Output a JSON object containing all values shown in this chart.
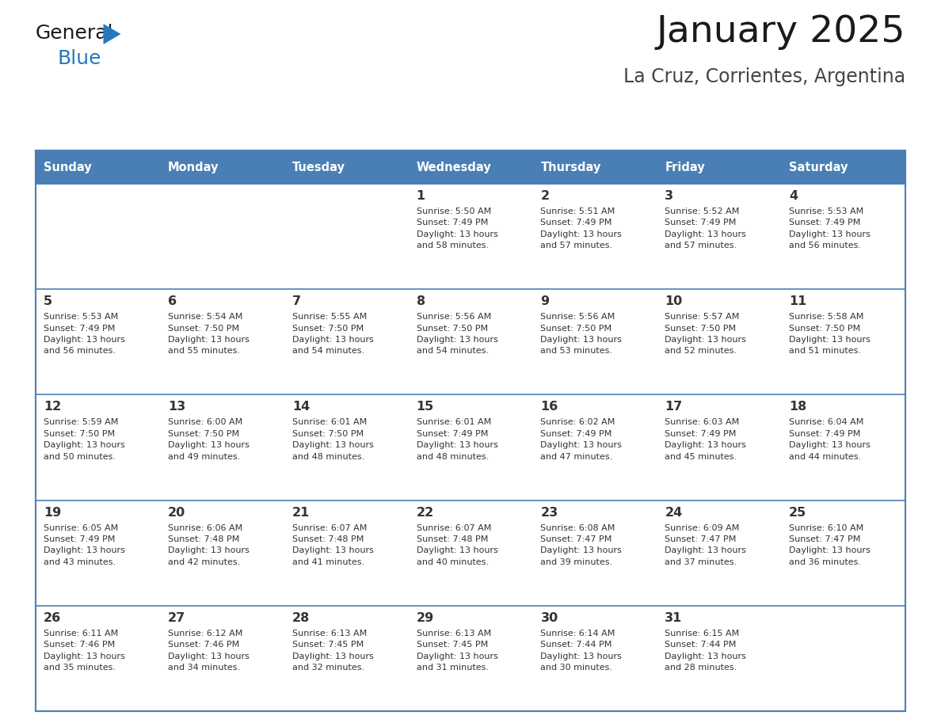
{
  "title": "January 2025",
  "subtitle": "La Cruz, Corrientes, Argentina",
  "header_bg": "#4a7fb5",
  "header_text_color": "#ffffff",
  "cell_bg": "#f0f2f5",
  "border_color": "#4a7fb5",
  "text_color": "#333333",
  "logo_color_general": "#222222",
  "logo_color_blue": "#2878c0",
  "days_of_week": [
    "Sunday",
    "Monday",
    "Tuesday",
    "Wednesday",
    "Thursday",
    "Friday",
    "Saturday"
  ],
  "weeks": [
    [
      {
        "day": "",
        "info": ""
      },
      {
        "day": "",
        "info": ""
      },
      {
        "day": "",
        "info": ""
      },
      {
        "day": "1",
        "info": "Sunrise: 5:50 AM\nSunset: 7:49 PM\nDaylight: 13 hours\nand 58 minutes."
      },
      {
        "day": "2",
        "info": "Sunrise: 5:51 AM\nSunset: 7:49 PM\nDaylight: 13 hours\nand 57 minutes."
      },
      {
        "day": "3",
        "info": "Sunrise: 5:52 AM\nSunset: 7:49 PM\nDaylight: 13 hours\nand 57 minutes."
      },
      {
        "day": "4",
        "info": "Sunrise: 5:53 AM\nSunset: 7:49 PM\nDaylight: 13 hours\nand 56 minutes."
      }
    ],
    [
      {
        "day": "5",
        "info": "Sunrise: 5:53 AM\nSunset: 7:49 PM\nDaylight: 13 hours\nand 56 minutes."
      },
      {
        "day": "6",
        "info": "Sunrise: 5:54 AM\nSunset: 7:50 PM\nDaylight: 13 hours\nand 55 minutes."
      },
      {
        "day": "7",
        "info": "Sunrise: 5:55 AM\nSunset: 7:50 PM\nDaylight: 13 hours\nand 54 minutes."
      },
      {
        "day": "8",
        "info": "Sunrise: 5:56 AM\nSunset: 7:50 PM\nDaylight: 13 hours\nand 54 minutes."
      },
      {
        "day": "9",
        "info": "Sunrise: 5:56 AM\nSunset: 7:50 PM\nDaylight: 13 hours\nand 53 minutes."
      },
      {
        "day": "10",
        "info": "Sunrise: 5:57 AM\nSunset: 7:50 PM\nDaylight: 13 hours\nand 52 minutes."
      },
      {
        "day": "11",
        "info": "Sunrise: 5:58 AM\nSunset: 7:50 PM\nDaylight: 13 hours\nand 51 minutes."
      }
    ],
    [
      {
        "day": "12",
        "info": "Sunrise: 5:59 AM\nSunset: 7:50 PM\nDaylight: 13 hours\nand 50 minutes."
      },
      {
        "day": "13",
        "info": "Sunrise: 6:00 AM\nSunset: 7:50 PM\nDaylight: 13 hours\nand 49 minutes."
      },
      {
        "day": "14",
        "info": "Sunrise: 6:01 AM\nSunset: 7:50 PM\nDaylight: 13 hours\nand 48 minutes."
      },
      {
        "day": "15",
        "info": "Sunrise: 6:01 AM\nSunset: 7:49 PM\nDaylight: 13 hours\nand 48 minutes."
      },
      {
        "day": "16",
        "info": "Sunrise: 6:02 AM\nSunset: 7:49 PM\nDaylight: 13 hours\nand 47 minutes."
      },
      {
        "day": "17",
        "info": "Sunrise: 6:03 AM\nSunset: 7:49 PM\nDaylight: 13 hours\nand 45 minutes."
      },
      {
        "day": "18",
        "info": "Sunrise: 6:04 AM\nSunset: 7:49 PM\nDaylight: 13 hours\nand 44 minutes."
      }
    ],
    [
      {
        "day": "19",
        "info": "Sunrise: 6:05 AM\nSunset: 7:49 PM\nDaylight: 13 hours\nand 43 minutes."
      },
      {
        "day": "20",
        "info": "Sunrise: 6:06 AM\nSunset: 7:48 PM\nDaylight: 13 hours\nand 42 minutes."
      },
      {
        "day": "21",
        "info": "Sunrise: 6:07 AM\nSunset: 7:48 PM\nDaylight: 13 hours\nand 41 minutes."
      },
      {
        "day": "22",
        "info": "Sunrise: 6:07 AM\nSunset: 7:48 PM\nDaylight: 13 hours\nand 40 minutes."
      },
      {
        "day": "23",
        "info": "Sunrise: 6:08 AM\nSunset: 7:47 PM\nDaylight: 13 hours\nand 39 minutes."
      },
      {
        "day": "24",
        "info": "Sunrise: 6:09 AM\nSunset: 7:47 PM\nDaylight: 13 hours\nand 37 minutes."
      },
      {
        "day": "25",
        "info": "Sunrise: 6:10 AM\nSunset: 7:47 PM\nDaylight: 13 hours\nand 36 minutes."
      }
    ],
    [
      {
        "day": "26",
        "info": "Sunrise: 6:11 AM\nSunset: 7:46 PM\nDaylight: 13 hours\nand 35 minutes."
      },
      {
        "day": "27",
        "info": "Sunrise: 6:12 AM\nSunset: 7:46 PM\nDaylight: 13 hours\nand 34 minutes."
      },
      {
        "day": "28",
        "info": "Sunrise: 6:13 AM\nSunset: 7:45 PM\nDaylight: 13 hours\nand 32 minutes."
      },
      {
        "day": "29",
        "info": "Sunrise: 6:13 AM\nSunset: 7:45 PM\nDaylight: 13 hours\nand 31 minutes."
      },
      {
        "day": "30",
        "info": "Sunrise: 6:14 AM\nSunset: 7:44 PM\nDaylight: 13 hours\nand 30 minutes."
      },
      {
        "day": "31",
        "info": "Sunrise: 6:15 AM\nSunset: 7:44 PM\nDaylight: 13 hours\nand 28 minutes."
      },
      {
        "day": "",
        "info": ""
      }
    ]
  ]
}
